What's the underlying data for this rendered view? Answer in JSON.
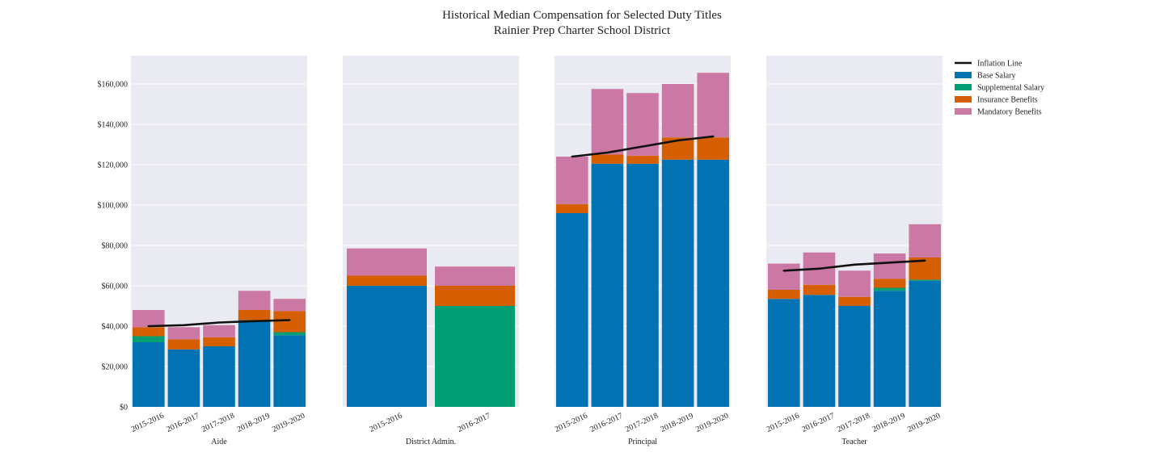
{
  "chart_data": {
    "type": "bar",
    "stacked": true,
    "title": "Historical Median Compensation for Selected Duty Titles",
    "subtitle": "Rainier Prep Charter School District",
    "ylim": [
      0,
      174000
    ],
    "y_ticks": [
      0,
      20000,
      40000,
      60000,
      80000,
      100000,
      120000,
      140000,
      160000
    ],
    "y_tick_labels": [
      "$0",
      "$20,000",
      "$40,000",
      "$60,000",
      "$80,000",
      "$100,000",
      "$120,000",
      "$140,000",
      "$160,000"
    ],
    "grid": true,
    "legend_position": "right",
    "legend": [
      {
        "name": "Inflation Line",
        "color": "#111111",
        "kind": "line"
      },
      {
        "name": "Base Salary",
        "color": "#0173b2",
        "kind": "bar"
      },
      {
        "name": "Supplemental Salary",
        "color": "#029e73",
        "kind": "bar"
      },
      {
        "name": "Insurance Benefits",
        "color": "#d55e00",
        "kind": "bar"
      },
      {
        "name": "Mandatory Benefits",
        "color": "#cc78a4",
        "kind": "bar"
      }
    ],
    "segment_order": [
      "base",
      "supplemental",
      "insurance",
      "mandatory"
    ],
    "segment_colors": {
      "base": "#0173b2",
      "supplemental": "#029e73",
      "insurance": "#d55e00",
      "mandatory": "#cc78a4",
      "inflation": "#111111",
      "panel_bg": "#eaeaf2",
      "grid": "#ffffff"
    },
    "panels": [
      {
        "xlabel": "Aide",
        "categories": [
          "2015-2016",
          "2016-2017",
          "2017-2018",
          "2018-2019",
          "2019-2020"
        ],
        "segments": {
          "base": [
            32000,
            28500,
            30000,
            43000,
            35500
          ],
          "supplemental": [
            3000,
            0,
            0,
            0,
            1500
          ],
          "insurance": [
            4500,
            5000,
            4500,
            5000,
            10500
          ],
          "mandatory": [
            8500,
            6000,
            6000,
            9500,
            6000
          ]
        },
        "inflation": [
          40000,
          40500,
          41800,
          42500,
          43000
        ]
      },
      {
        "xlabel": "District Admin.",
        "categories": [
          "2015-2016",
          "2016-2017"
        ],
        "segments": {
          "base": [
            60000,
            0
          ],
          "supplemental": [
            0,
            50000
          ],
          "insurance": [
            5000,
            10000
          ],
          "mandatory": [
            13500,
            9500
          ]
        },
        "inflation": []
      },
      {
        "xlabel": "Principal",
        "categories": [
          "2015-2016",
          "2016-2017",
          "2017-2018",
          "2018-2019",
          "2019-2020"
        ],
        "segments": {
          "base": [
            96000,
            120500,
            120500,
            122500,
            122500
          ],
          "supplemental": [
            0,
            0,
            0,
            0,
            0
          ],
          "insurance": [
            4500,
            4500,
            4000,
            11000,
            11000
          ],
          "mandatory": [
            23500,
            32500,
            31000,
            26500,
            32000
          ]
        },
        "inflation": [
          124000,
          126000,
          129000,
          132000,
          134000
        ]
      },
      {
        "xlabel": "Teacher",
        "categories": [
          "2015-2016",
          "2016-2017",
          "2017-2018",
          "2018-2019",
          "2019-2020"
        ],
        "segments": {
          "base": [
            53500,
            55500,
            50000,
            57500,
            62500
          ],
          "supplemental": [
            0,
            0,
            0,
            1500,
            500
          ],
          "insurance": [
            4500,
            5000,
            4500,
            4500,
            11000
          ],
          "mandatory": [
            13000,
            16000,
            13000,
            12500,
            16500
          ]
        },
        "inflation": [
          67500,
          68500,
          70500,
          71500,
          72500
        ]
      }
    ]
  }
}
